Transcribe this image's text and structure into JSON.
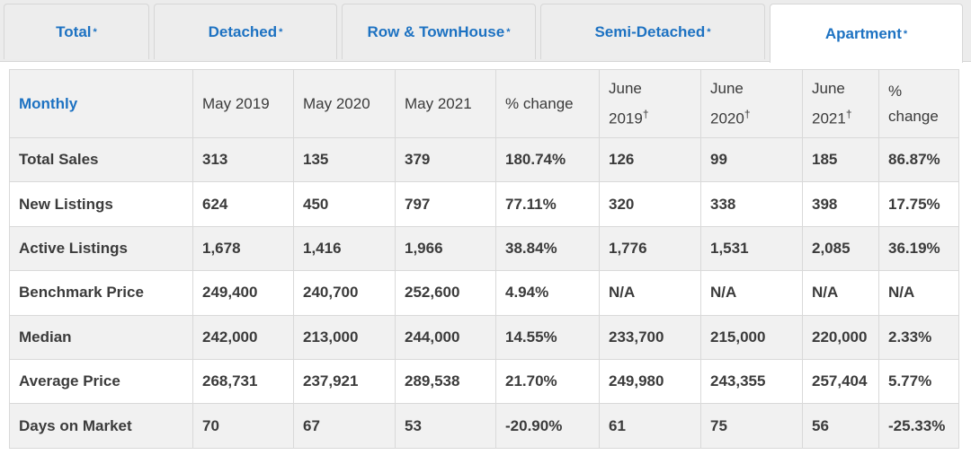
{
  "tabs": [
    {
      "label": "Total",
      "star": "*",
      "active": false
    },
    {
      "label": "Detached",
      "star": "*",
      "active": false
    },
    {
      "label": "Row & TownHouse",
      "star": "*",
      "active": false
    },
    {
      "label": "Semi-Detached",
      "star": "*",
      "active": false
    },
    {
      "label": "Apartment",
      "star": "*",
      "active": true
    }
  ],
  "table": {
    "headers": [
      {
        "line1": "Monthly",
        "line2": "",
        "dagger": ""
      },
      {
        "line1": "May 2019",
        "line2": "",
        "dagger": ""
      },
      {
        "line1": "May 2020",
        "line2": "",
        "dagger": ""
      },
      {
        "line1": "May 2021",
        "line2": "",
        "dagger": ""
      },
      {
        "line1": "% change",
        "line2": "",
        "dagger": ""
      },
      {
        "line1": "June",
        "line2": "2019",
        "dagger": "†"
      },
      {
        "line1": "June",
        "line2": "2020",
        "dagger": "†"
      },
      {
        "line1": "June",
        "line2": "2021",
        "dagger": "†"
      },
      {
        "line1": "%",
        "line2": "change",
        "dagger": ""
      }
    ],
    "rows": [
      [
        "Total Sales",
        "313",
        "135",
        "379",
        "180.74%",
        "126",
        "99",
        "185",
        "86.87%"
      ],
      [
        "New Listings",
        "624",
        "450",
        "797",
        "77.11%",
        "320",
        "338",
        "398",
        "17.75%"
      ],
      [
        "Active Listings",
        "1,678",
        "1,416",
        "1,966",
        "38.84%",
        "1,776",
        "1,531",
        "2,085",
        "36.19%"
      ],
      [
        "Benchmark Price",
        "249,400",
        "240,700",
        "252,600",
        "4.94%",
        "N/A",
        "N/A",
        "N/A",
        "N/A"
      ],
      [
        "Median",
        "242,000",
        "213,000",
        "244,000",
        "14.55%",
        "233,700",
        "215,000",
        "220,000",
        "2.33%"
      ],
      [
        "Average Price",
        "268,731",
        "237,921",
        "289,538",
        "21.70%",
        "249,980",
        "243,355",
        "257,404",
        "5.77%"
      ],
      [
        "Days on Market",
        "70",
        "67",
        "53",
        "-20.90%",
        "61",
        "75",
        "56",
        "-25.33%"
      ]
    ]
  }
}
